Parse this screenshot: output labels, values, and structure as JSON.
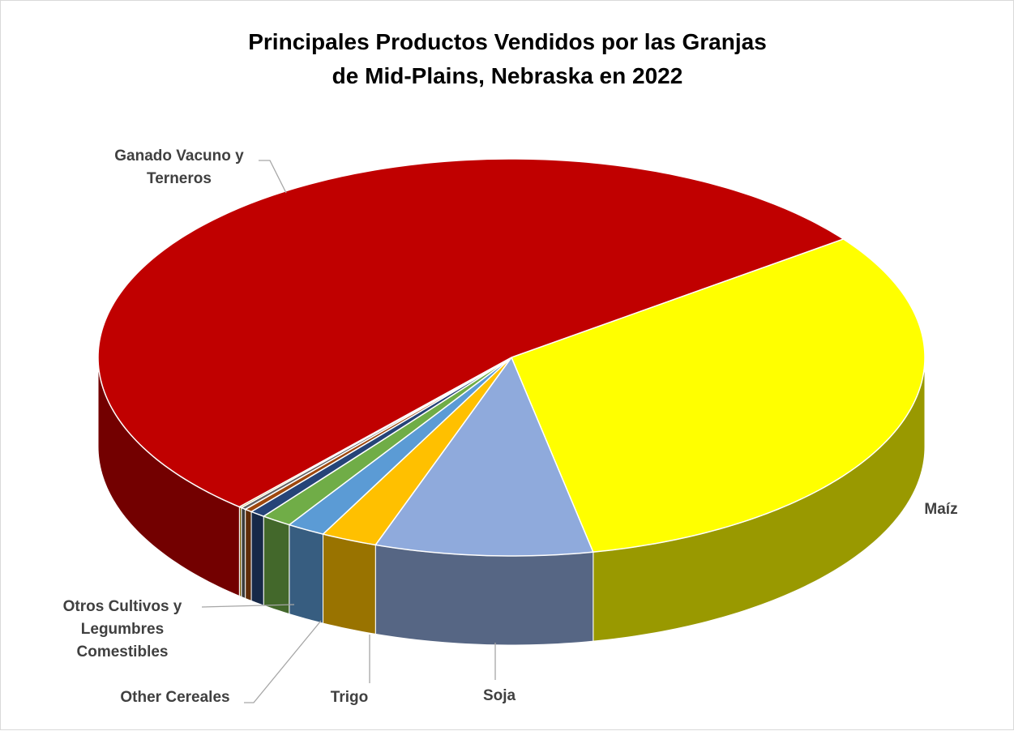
{
  "chart_data": {
    "type": "pie",
    "title": "Principales Productos Vendidos por las Granjas de Mid-Plains, Nebraska en 2022",
    "categories": [
      "Maíz",
      "Soja",
      "Trigo",
      "Other Cereales",
      "Otros Cultivos y Legumbres Comestibles",
      null,
      null,
      null,
      null,
      "Ganado Vacuno y Terneros"
    ],
    "values": [
      32,
      8.5,
      2.2,
      1.5,
      1.2,
      0.6,
      0.3,
      0.2,
      0.1,
      53.4
    ],
    "colors": [
      "#ffff00",
      "#8faadc",
      "#ffc000",
      "#5b9bd5",
      "#70ad47",
      "#264478",
      "#9e480e",
      "#636363",
      "#bf9000",
      "#c00000"
    ]
  }
}
